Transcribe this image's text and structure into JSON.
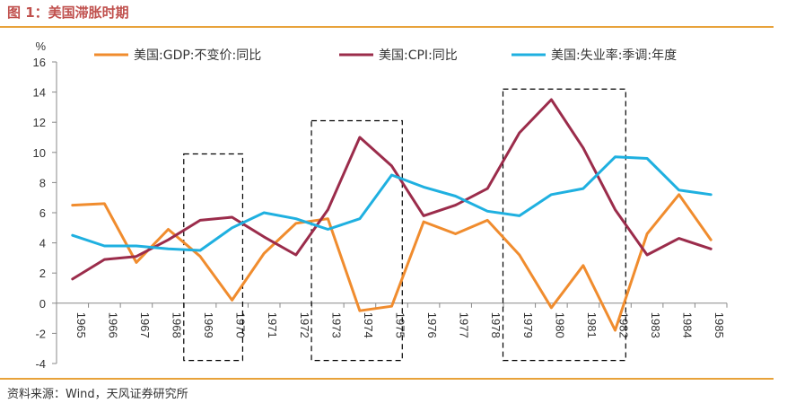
{
  "header": {
    "title": "图 1：美国滞胀时期"
  },
  "footer": {
    "source": "资料来源：Wind，天风证券研究所"
  },
  "chart_data": {
    "type": "line",
    "ylabel": "%",
    "ylim": [
      -4,
      16
    ],
    "yticks": [
      -4,
      -2,
      0,
      2,
      4,
      6,
      8,
      10,
      12,
      14,
      16
    ],
    "categories": [
      "1965",
      "1966",
      "1967",
      "1968",
      "1969",
      "1970",
      "1971",
      "1972",
      "1973",
      "1974",
      "1975",
      "1976",
      "1977",
      "1978",
      "1979",
      "1980",
      "1981",
      "1982",
      "1983",
      "1984",
      "1985"
    ],
    "legend_position": "top",
    "grid": false,
    "series": [
      {
        "name": "美国:GDP:不变价:同比",
        "color": "#f08c2e",
        "values": [
          6.5,
          6.6,
          2.7,
          4.9,
          3.1,
          0.2,
          3.3,
          5.3,
          5.6,
          -0.5,
          -0.2,
          5.4,
          4.6,
          5.5,
          3.2,
          -0.3,
          2.5,
          -1.8,
          4.6,
          7.2,
          4.2
        ]
      },
      {
        "name": "美国:CPI:同比",
        "color": "#9b2c4b",
        "values": [
          1.6,
          2.9,
          3.1,
          4.2,
          5.5,
          5.7,
          4.4,
          3.2,
          6.2,
          11.0,
          9.1,
          5.8,
          6.5,
          7.6,
          11.3,
          13.5,
          10.3,
          6.2,
          3.2,
          4.3,
          3.6
        ]
      },
      {
        "name": "美国:失业率:季调:年度",
        "color": "#1fb0e0",
        "values": [
          4.5,
          3.8,
          3.8,
          3.6,
          3.5,
          5.0,
          6.0,
          5.6,
          4.9,
          5.6,
          8.5,
          7.7,
          7.1,
          6.1,
          5.8,
          7.2,
          7.6,
          9.7,
          9.6,
          7.5,
          7.2
        ]
      }
    ],
    "highlight_periods": [
      [
        "1969",
        "1970"
      ],
      [
        "1973",
        "1975"
      ],
      [
        "1979",
        "1982"
      ]
    ]
  }
}
